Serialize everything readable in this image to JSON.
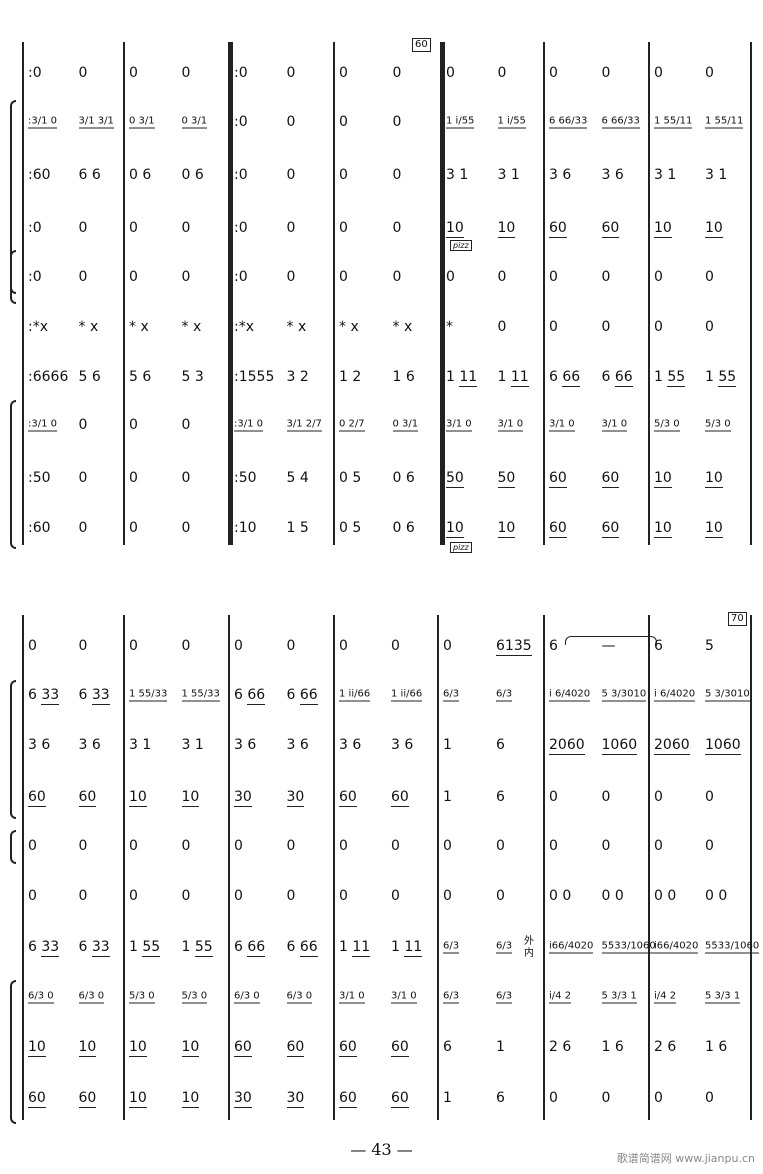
{
  "systems": [
    {
      "rehearsal": "60",
      "rows": [
        [
          [
            ":0",
            "0"
          ],
          [
            "0",
            "0"
          ],
          [
            ":0",
            "0"
          ],
          [
            "0",
            "0"
          ],
          [
            "0",
            "0"
          ],
          [
            "0",
            "0"
          ],
          [
            "0",
            "0"
          ]
        ],
        [
          [
            ":3/1 0",
            "3/1 3/1"
          ],
          [
            "0 3/1",
            "0 3/1"
          ],
          [
            ":0",
            "0"
          ],
          [
            "0",
            "0"
          ],
          [
            "1 i/55",
            "1 i/55"
          ],
          [
            "6 66/33",
            "6 66/33"
          ],
          [
            "1 55/11",
            "1 55/11"
          ]
        ],
        [
          [
            ":60",
            "6 6"
          ],
          [
            "0 6",
            "0 6"
          ],
          [
            ":0",
            "0"
          ],
          [
            "0",
            "0"
          ],
          [
            "3 1",
            "3 1"
          ],
          [
            "3 6",
            "3 6"
          ],
          [
            "3 1",
            "3 1"
          ]
        ],
        [
          [
            ":0",
            "0"
          ],
          [
            "0",
            "0"
          ],
          [
            ":0",
            "0"
          ],
          [
            "0",
            "0"
          ],
          [
            "10",
            "10"
          ],
          [
            "60",
            "60"
          ],
          [
            "10",
            "10"
          ]
        ],
        [
          [
            ":0",
            "0"
          ],
          [
            "0",
            "0"
          ],
          [
            ":0",
            "0"
          ],
          [
            "0",
            "0"
          ],
          [
            "0",
            "0"
          ],
          [
            "0",
            "0"
          ],
          [
            "0",
            "0"
          ]
        ],
        [
          [
            ":*x",
            "* x"
          ],
          [
            "* x",
            "* x"
          ],
          [
            ":*x",
            "* x"
          ],
          [
            "* x",
            "* x"
          ],
          [
            "*",
            "0"
          ],
          [
            "0",
            "0"
          ],
          [
            "0",
            "0"
          ]
        ],
        [
          [
            ":6666",
            "5 6"
          ],
          [
            "5 6",
            "5 3"
          ],
          [
            ":1555",
            "3 2"
          ],
          [
            "1 2",
            "1 6"
          ],
          [
            "1 11",
            "1 11"
          ],
          [
            "6 66",
            "6 66"
          ],
          [
            "1 55",
            "1 55"
          ]
        ],
        [
          [
            ":3/1 0",
            "0"
          ],
          [
            "0",
            "0"
          ],
          [
            ":3/1 0",
            "3/1 2/7"
          ],
          [
            "0 2/7",
            "0 3/1"
          ],
          [
            "3/1 0",
            "3/1 0"
          ],
          [
            "3/1 0",
            "3/1 0"
          ],
          [
            "5/3 0",
            "5/3 0"
          ]
        ],
        [
          [
            ":50",
            "0"
          ],
          [
            "0",
            "0"
          ],
          [
            ":50",
            "5 4"
          ],
          [
            "0 5",
            "0 6"
          ],
          [
            "50",
            "50"
          ],
          [
            "60",
            "60"
          ],
          [
            "10",
            "10"
          ]
        ],
        [
          [
            ":60",
            "0"
          ],
          [
            "0",
            "0"
          ],
          [
            ":10",
            "1 5"
          ],
          [
            "0 5",
            "0 6"
          ],
          [
            "10",
            "10"
          ],
          [
            "60",
            "60"
          ],
          [
            "10",
            "10"
          ]
        ]
      ]
    },
    {
      "rehearsal": "70",
      "rows": [
        [
          [
            "0",
            "0"
          ],
          [
            "0",
            "0"
          ],
          [
            "0",
            "0"
          ],
          [
            "0",
            "0"
          ],
          [
            "0",
            "6135"
          ],
          [
            "6",
            "—"
          ],
          [
            "6",
            "5"
          ]
        ],
        [
          [
            "6 33",
            "6 33"
          ],
          [
            "1 55/33",
            "1 55/33"
          ],
          [
            "6 66",
            "6 66"
          ],
          [
            "1 ii/66",
            "1 ii/66"
          ],
          [
            "6/3",
            "6/3"
          ],
          [
            "i 6/4020",
            "5 3/3010"
          ],
          [
            "i 6/4020",
            "5 3/3010"
          ]
        ],
        [
          [
            "3 6",
            "3 6"
          ],
          [
            "3 1",
            "3 1"
          ],
          [
            "3 6",
            "3 6"
          ],
          [
            "3 6",
            "3 6"
          ],
          [
            "1",
            "6"
          ],
          [
            "2060",
            "1060"
          ],
          [
            "2060",
            "1060"
          ]
        ],
        [
          [
            "60",
            "60"
          ],
          [
            "10",
            "10"
          ],
          [
            "30",
            "30"
          ],
          [
            "60",
            "60"
          ],
          [
            "1",
            "6"
          ],
          [
            "0",
            "0"
          ],
          [
            "0",
            "0"
          ]
        ],
        [
          [
            "0",
            "0"
          ],
          [
            "0",
            "0"
          ],
          [
            "0",
            "0"
          ],
          [
            "0",
            "0"
          ],
          [
            "0",
            "0"
          ],
          [
            "0",
            "0"
          ],
          [
            "0",
            "0"
          ]
        ],
        [
          [
            "0",
            "0"
          ],
          [
            "0",
            "0"
          ],
          [
            "0",
            "0"
          ],
          [
            "0",
            "0"
          ],
          [
            "0",
            "0"
          ],
          [
            "0 0",
            "0 0"
          ],
          [
            "0 0",
            "0 0"
          ]
        ],
        [
          [
            "6 33",
            "6 33"
          ],
          [
            "1 55",
            "1 55"
          ],
          [
            "6 66",
            "6 66"
          ],
          [
            "1 11",
            "1 11"
          ],
          [
            "6/3",
            "6/3"
          ],
          [
            "i66/4020",
            "5533/1060"
          ],
          [
            "i66/4020",
            "5533/1060"
          ]
        ],
        [
          [
            "6/3 0",
            "6/3 0"
          ],
          [
            "5/3 0",
            "5/3 0"
          ],
          [
            "6/3 0",
            "6/3 0"
          ],
          [
            "3/1 0",
            "3/1 0"
          ],
          [
            "6/3",
            "6/3"
          ],
          [
            "i/4 2",
            "5 3/3 1"
          ],
          [
            "i/4 2",
            "5 3/3 1"
          ]
        ],
        [
          [
            "10",
            "10"
          ],
          [
            "10",
            "10"
          ],
          [
            "60",
            "60"
          ],
          [
            "60",
            "60"
          ],
          [
            "6",
            "1"
          ],
          [
            "2 6",
            "1 6"
          ],
          [
            "2 6",
            "1 6"
          ]
        ],
        [
          [
            "60",
            "60"
          ],
          [
            "10",
            "10"
          ],
          [
            "30",
            "30"
          ],
          [
            "60",
            "60"
          ],
          [
            "1",
            "6"
          ],
          [
            "0",
            "0"
          ],
          [
            "0",
            "0"
          ]
        ]
      ]
    }
  ],
  "pizz": "pizz",
  "side_label_top": "外",
  "side_label_bottom": "内",
  "page_number": "— 43 —",
  "watermark": "歌谱简谱网 www.jianpu.cn"
}
